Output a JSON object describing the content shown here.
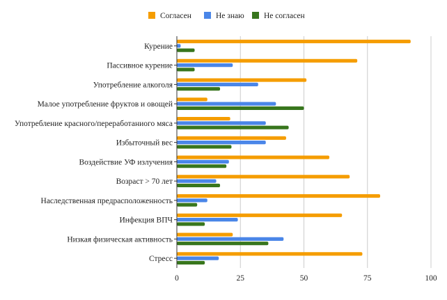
{
  "chart_data": {
    "type": "bar",
    "orientation": "horizontal",
    "categories": [
      "Курение",
      "Пассивное курение",
      "Употребление алкоголя",
      "Малое употребление фруктов и овощей",
      "Употребление красного/переработаниого мяса",
      "Избыточный вес",
      "Воздействие УФ излучения",
      "Возраст > 70 лет",
      "Наследственная предрасположенность",
      "Инфекция ВПЧ",
      "Низкая физическая активность",
      "Стресс"
    ],
    "series": [
      {
        "name": "Согласен",
        "color": "#f59d00",
        "values": [
          92,
          71,
          51,
          12,
          21,
          43,
          60,
          68,
          80,
          65,
          22,
          73
        ]
      },
      {
        "name": "Не знаю",
        "color": "#4a86e8",
        "values": [
          1.5,
          22,
          32,
          39,
          35,
          35,
          20.5,
          15.5,
          12,
          24,
          42,
          16.5
        ]
      },
      {
        "name": "Не согласен",
        "color": "#38761d",
        "values": [
          7,
          7,
          17,
          50,
          44,
          21.5,
          19.5,
          17,
          8,
          11,
          36,
          11
        ]
      }
    ],
    "xlim": [
      0,
      100
    ],
    "xticks": [
      0,
      25,
      50,
      75,
      100
    ],
    "title": "",
    "xlabel": "",
    "ylabel": "",
    "grid": "vertical",
    "legend_position": "top-center"
  }
}
